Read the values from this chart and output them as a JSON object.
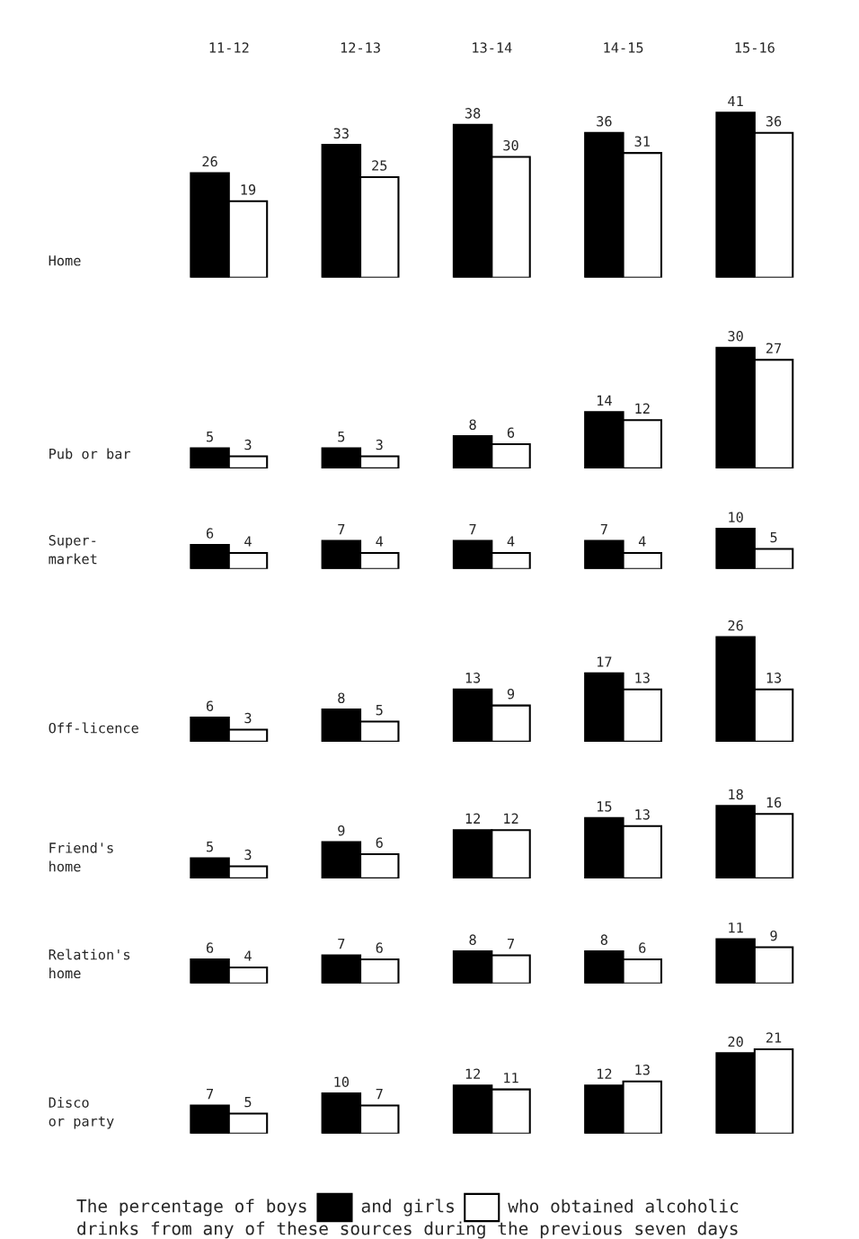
{
  "chart_data": [
    {
      "type": "bar",
      "ylabel": "Home",
      "categories": [
        "11-12",
        "12-13",
        "13-14",
        "14-15",
        "15-16"
      ],
      "tick_labels": "x",
      "data_labels": true,
      "series": [
        {
          "color": "#000000",
          "values": [
            26,
            33,
            38,
            36,
            41
          ]
        },
        {
          "color": "#ffffff",
          "values": [
            19,
            25,
            30,
            31,
            36
          ]
        }
      ]
    },
    {
      "type": "bar",
      "ylabel": "Pub or bar",
      "categories": [
        null,
        null,
        null,
        null,
        null
      ],
      "data_labels": true,
      "series": [
        {
          "color": "#000000",
          "values": [
            5,
            5,
            8,
            14,
            30
          ]
        },
        {
          "color": "#ffffff",
          "values": [
            3,
            3,
            6,
            12,
            27
          ]
        }
      ]
    },
    {
      "type": "bar",
      "ylabel": "Super-\nmarket",
      "categories": [
        null,
        null,
        null,
        null,
        null
      ],
      "data_labels": true,
      "series": [
        {
          "color": "#000000",
          "values": [
            6,
            7,
            7,
            7,
            10
          ]
        },
        {
          "color": "#ffffff",
          "values": [
            4,
            4,
            4,
            4,
            5
          ]
        }
      ]
    },
    {
      "type": "bar",
      "ylabel": "Off-licence",
      "categories": [
        null,
        null,
        null,
        null,
        null
      ],
      "data_labels": true,
      "series": [
        {
          "color": "#000000",
          "values": [
            6,
            8,
            13,
            17,
            26
          ]
        },
        {
          "color": "#ffffff",
          "values": [
            3,
            5,
            9,
            13,
            13
          ]
        }
      ]
    },
    {
      "type": "bar",
      "ylabel": "Friend's\nhome",
      "categories": [
        null,
        null,
        null,
        null,
        null
      ],
      "data_labels": true,
      "series": [
        {
          "color": "#000000",
          "values": [
            5,
            9,
            12,
            15,
            18
          ]
        },
        {
          "color": "#ffffff",
          "values": [
            3,
            6,
            12,
            13,
            16
          ]
        }
      ]
    },
    {
      "type": "bar",
      "ylabel": "Relation's\nhome",
      "categories": [
        null,
        null,
        null,
        null,
        null
      ],
      "data_labels": true,
      "series": [
        {
          "color": "#000000",
          "values": [
            6,
            7,
            8,
            8,
            11
          ]
        },
        {
          "color": "#ffffff",
          "values": [
            4,
            6,
            7,
            6,
            9
          ]
        }
      ]
    },
    {
      "type": "bar",
      "ylabel": "Disco\nor party",
      "categories": [
        null,
        null,
        null,
        null,
        null
      ],
      "data_labels": true,
      "series": [
        {
          "color": "#000000",
          "values": [
            7,
            10,
            12,
            12,
            20
          ]
        },
        {
          "color": "#ffffff",
          "values": [
            5,
            7,
            11,
            13,
            21
          ]
        }
      ],
      "annotations": [
        "The percentage of boys",
        "and girls",
        "who obtained alcoholic",
        "drinks from any of these sources during the previous seven days"
      ]
    }
  ]
}
